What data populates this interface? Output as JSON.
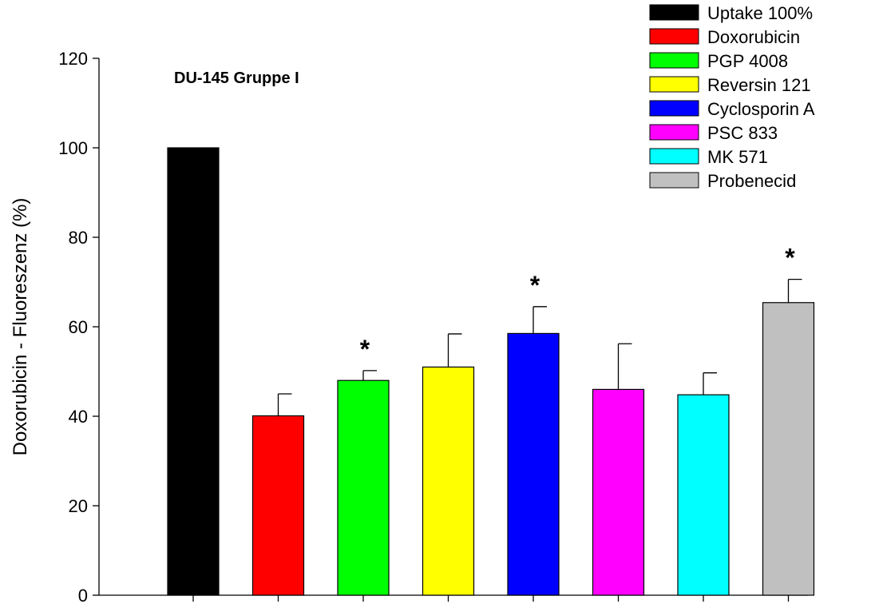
{
  "chart_data": {
    "type": "bar",
    "title": "DU-145 Gruppe I",
    "ylabel": "Doxorubicin - Fluoreszenz (%)",
    "xlabel": "",
    "ylim": [
      0,
      120
    ],
    "yticks": [
      0,
      20,
      40,
      60,
      80,
      100,
      120
    ],
    "grid": false,
    "legend_position": "top-right",
    "categories": [
      "Uptake 100%",
      "Doxorubicin",
      "PGP 4008",
      "Reversin 121",
      "Cyclosporin A",
      "PSC 833",
      "MK 571",
      "Probenecid"
    ],
    "values": [
      100,
      40.1,
      48.0,
      51.0,
      58.5,
      46.0,
      44.8,
      65.4
    ],
    "errors": [
      0,
      4.9,
      2.2,
      7.4,
      6.0,
      10.2,
      4.9,
      5.2
    ],
    "colors": [
      "#000000",
      "#ff0000",
      "#00ff00",
      "#ffff00",
      "#0000ff",
      "#ff00ff",
      "#00ffff",
      "#c0c0c0"
    ],
    "significant": [
      false,
      false,
      true,
      false,
      true,
      false,
      false,
      true
    ],
    "significance_marker": "*"
  }
}
